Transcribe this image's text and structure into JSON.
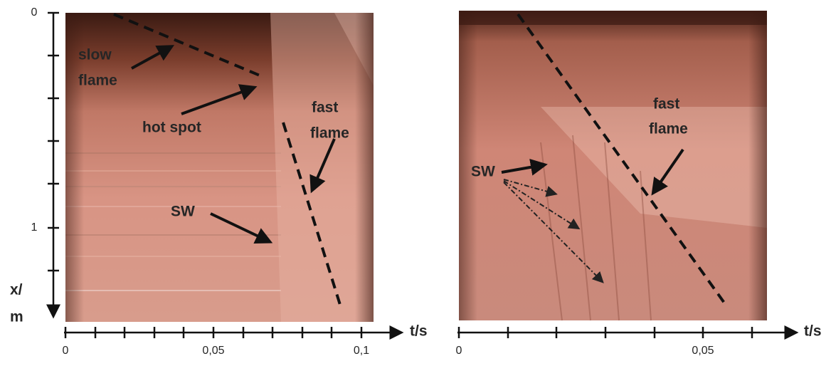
{
  "panels": [
    {
      "y_axis": {
        "tick_labels": [
          "0",
          "1"
        ],
        "label": [
          "x/",
          "m"
        ]
      },
      "x_axis": {
        "tick_labels": [
          "0",
          "0,05",
          "0,1"
        ],
        "label": "t/s"
      },
      "annotations": [
        [
          "slow",
          "flame"
        ],
        [
          "hot spot"
        ],
        [
          "fast",
          "flame"
        ],
        [
          "SW"
        ]
      ]
    },
    {
      "x_axis": {
        "tick_labels": [
          "0",
          "0,05"
        ],
        "label": "t/s"
      },
      "annotations": [
        [
          "fast",
          "flame"
        ],
        [
          "SW"
        ]
      ]
    }
  ]
}
